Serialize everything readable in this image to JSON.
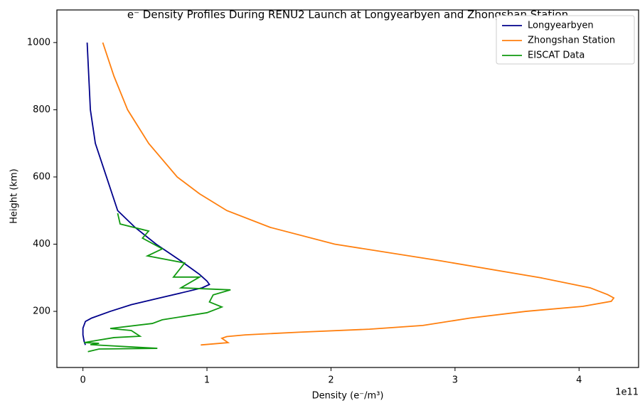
{
  "chart_data": {
    "type": "line",
    "title": "e⁻ Density Profiles During RENU2 Launch at Longyearbyen and Zhongshan Station",
    "xlabel": "Density (e⁻/m³)",
    "ylabel": "Height (km)",
    "x_offset_label": "1e11",
    "xlim": [
      -0.21,
      4.48
    ],
    "ylim": [
      33,
      1097
    ],
    "xticks": [
      0,
      1,
      2,
      3,
      4
    ],
    "yticks": [
      200,
      400,
      600,
      800,
      1000
    ],
    "legend": "upper right",
    "series": [
      {
        "name": "Longyearbyen",
        "color": "#00008b",
        "x": [
          0.034,
          0.06,
          0.1,
          0.19,
          0.28,
          0.42,
          0.59,
          0.79,
          0.94,
          1.0,
          1.02,
          0.96,
          0.85,
          0.62,
          0.39,
          0.22,
          0.07,
          0.02,
          0.0,
          0.0,
          0.01,
          0.02
        ],
        "y": [
          1000,
          800,
          700,
          600,
          500,
          450,
          400,
          350,
          310,
          290,
          280,
          270,
          260,
          240,
          220,
          200,
          180,
          170,
          150,
          130,
          110,
          100
        ]
      },
      {
        "name": "Zhongshan Station",
        "color": "#ff7f0e",
        "x": [
          0.16,
          0.25,
          0.36,
          0.53,
          0.76,
          0.94,
          1.16,
          1.51,
          2.03,
          2.89,
          3.69,
          4.09,
          4.23,
          4.28,
          4.26,
          4.03,
          3.57,
          3.12,
          2.74,
          2.31,
          1.74,
          1.31,
          1.16,
          1.12,
          1.17,
          0.95
        ],
        "y": [
          1000,
          900,
          800,
          700,
          600,
          550,
          500,
          450,
          400,
          350,
          300,
          270,
          250,
          240,
          230,
          215,
          200,
          180,
          158,
          147,
          138,
          130,
          125,
          120,
          107,
          100
        ]
      },
      {
        "name": "EISCAT Data",
        "color": "#119a11",
        "x": [
          0.28,
          0.3,
          0.53,
          0.48,
          0.64,
          0.52,
          0.82,
          0.73,
          0.94,
          0.79,
          1.19,
          1.05,
          1.02,
          1.12,
          1.0,
          0.64,
          0.56,
          0.22,
          0.39,
          0.46,
          0.25,
          0.07,
          0.01,
          0.13,
          0.06,
          0.6,
          0.13,
          0.04
        ],
        "y": [
          492,
          460,
          439,
          418,
          386,
          365,
          344,
          302,
          302,
          270,
          264,
          249,
          228,
          213,
          196,
          175,
          164,
          149,
          143,
          126,
          122,
          111,
          107,
          105,
          101,
          90,
          88,
          80
        ]
      }
    ]
  }
}
